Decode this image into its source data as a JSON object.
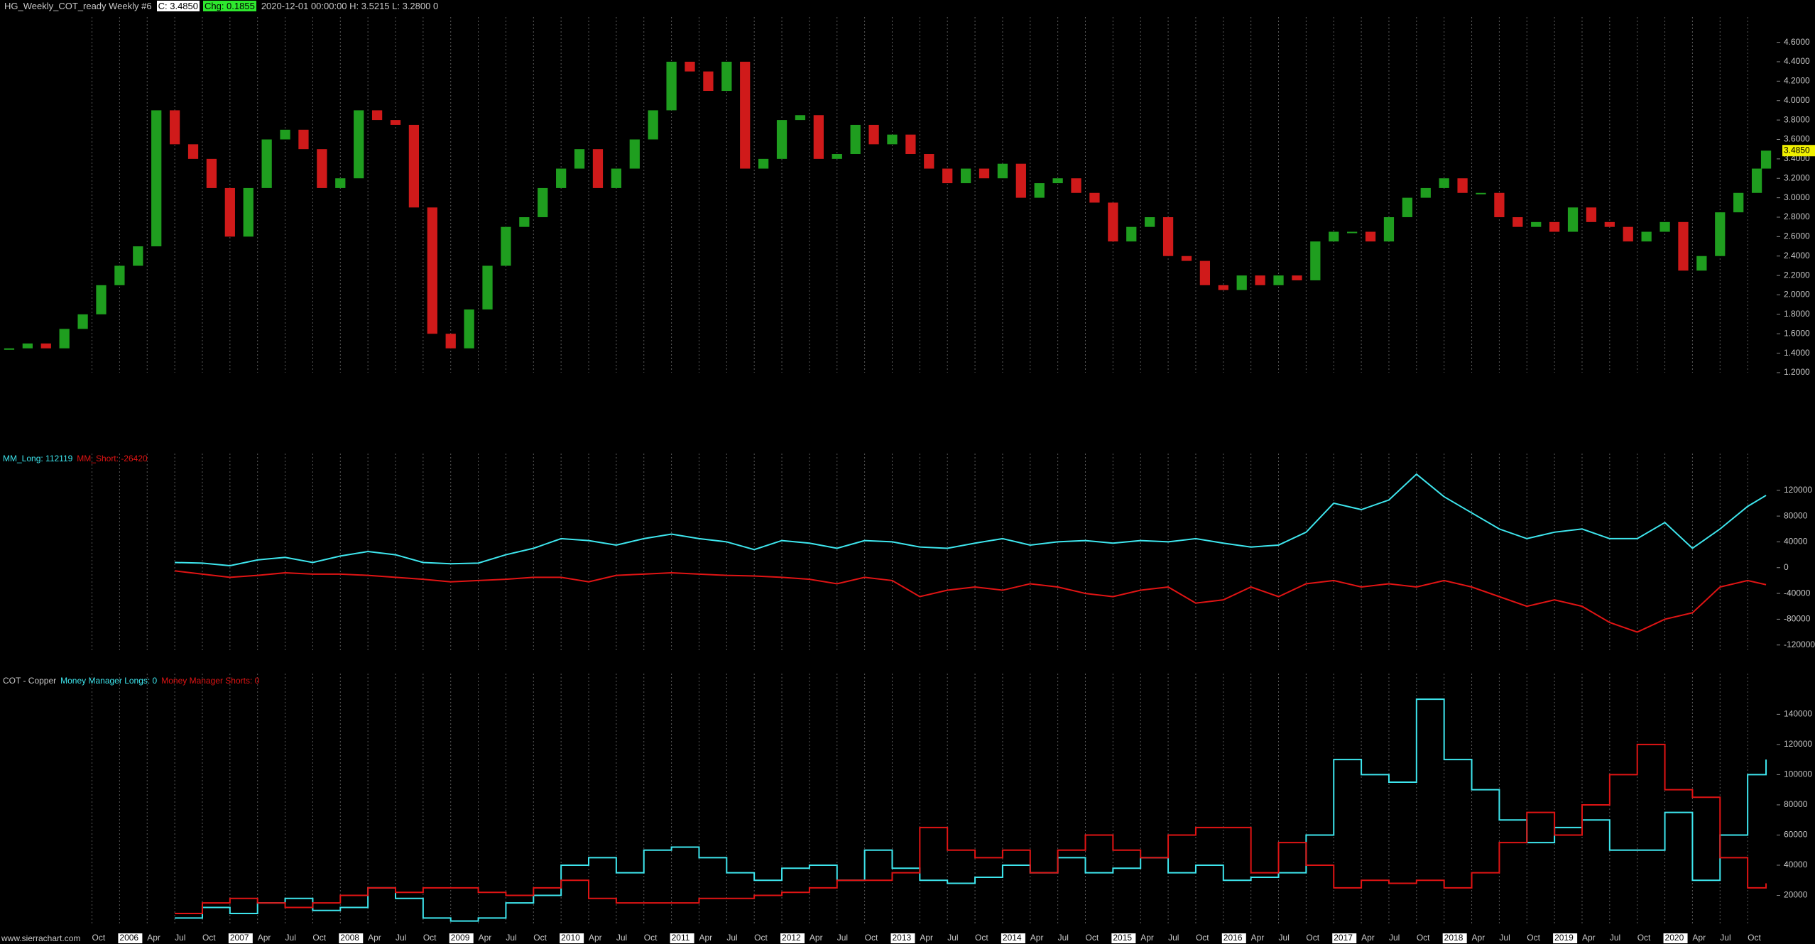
{
  "header": {
    "symbol": "HG_Weekly_COT_ready Weekly #6",
    "close": "C: 3.4850",
    "change": "Chg: 0.1855",
    "info": "2020-12-01 00:00:00 H: 3.5215 L: 3.2800 0",
    "last_label": "3.4850"
  },
  "footer": {
    "watermark": "www.sierrachart.com"
  },
  "chart_data": [
    {
      "type": "candlestick",
      "up_color": "#1f9e1f",
      "down_color": "#d01a1a",
      "last_color": "#f0f000",
      "xlim": [
        "2004-12",
        "2021-01"
      ],
      "x": [
        "2005-01",
        "2005-03",
        "2005-05",
        "2005-07",
        "2005-09",
        "2005-11",
        "2006-01",
        "2006-03",
        "2006-05",
        "2006-07",
        "2006-09",
        "2006-11",
        "2007-01",
        "2007-03",
        "2007-05",
        "2007-07",
        "2007-09",
        "2007-11",
        "2008-01",
        "2008-03",
        "2008-05",
        "2008-07",
        "2008-09",
        "2008-11",
        "2009-01",
        "2009-03",
        "2009-05",
        "2009-07",
        "2009-09",
        "2009-11",
        "2010-01",
        "2010-03",
        "2010-05",
        "2010-07",
        "2010-09",
        "2010-11",
        "2011-01",
        "2011-03",
        "2011-05",
        "2011-07",
        "2011-09",
        "2011-11",
        "2012-01",
        "2012-03",
        "2012-05",
        "2012-07",
        "2012-09",
        "2012-11",
        "2013-01",
        "2013-03",
        "2013-05",
        "2013-07",
        "2013-09",
        "2013-11",
        "2014-01",
        "2014-03",
        "2014-05",
        "2014-07",
        "2014-09",
        "2014-11",
        "2015-01",
        "2015-03",
        "2015-05",
        "2015-07",
        "2015-09",
        "2015-11",
        "2016-01",
        "2016-03",
        "2016-05",
        "2016-07",
        "2016-09",
        "2016-11",
        "2017-01",
        "2017-03",
        "2017-05",
        "2017-07",
        "2017-09",
        "2017-11",
        "2018-01",
        "2018-03",
        "2018-05",
        "2018-07",
        "2018-09",
        "2018-11",
        "2019-01",
        "2019-03",
        "2019-05",
        "2019-07",
        "2019-09",
        "2019-11",
        "2020-01",
        "2020-03",
        "2020-05",
        "2020-07",
        "2020-09",
        "2020-11",
        "2020-12"
      ],
      "values": [
        1.45,
        1.5,
        1.45,
        1.65,
        1.8,
        2.1,
        2.3,
        2.5,
        3.9,
        3.55,
        3.4,
        3.1,
        2.6,
        3.1,
        3.6,
        3.7,
        3.5,
        3.1,
        3.2,
        3.9,
        3.8,
        3.75,
        2.9,
        1.6,
        1.45,
        1.85,
        2.3,
        2.7,
        2.8,
        3.1,
        3.3,
        3.5,
        3.1,
        3.3,
        3.6,
        3.9,
        4.4,
        4.3,
        4.1,
        4.4,
        3.3,
        3.4,
        3.8,
        3.85,
        3.4,
        3.45,
        3.75,
        3.55,
        3.65,
        3.45,
        3.3,
        3.15,
        3.3,
        3.2,
        3.35,
        3.0,
        3.15,
        3.2,
        3.05,
        2.95,
        2.55,
        2.7,
        2.8,
        2.4,
        2.35,
        2.1,
        2.05,
        2.2,
        2.1,
        2.2,
        2.15,
        2.55,
        2.65,
        2.65,
        2.55,
        2.8,
        3.0,
        3.1,
        3.2,
        3.05,
        3.05,
        2.8,
        2.7,
        2.75,
        2.65,
        2.9,
        2.75,
        2.7,
        2.55,
        2.65,
        2.75,
        2.25,
        2.4,
        2.85,
        3.05,
        3.3,
        3.485
      ],
      "ylim": [
        1.2,
        4.86
      ],
      "yticks": [
        {
          "value": 1.2,
          "label": "1.2000"
        },
        {
          "value": 1.4,
          "label": "1.4000"
        },
        {
          "value": 1.6,
          "label": "1.6000"
        },
        {
          "value": 1.8,
          "label": "1.8000"
        },
        {
          "value": 2.0,
          "label": "2.0000"
        },
        {
          "value": 2.2,
          "label": "2.2000"
        },
        {
          "value": 2.4,
          "label": "2.4000"
        },
        {
          "value": 2.6,
          "label": "2.6000"
        },
        {
          "value": 2.8,
          "label": "2.8000"
        },
        {
          "value": 3.0,
          "label": "3.0000"
        },
        {
          "value": 3.2,
          "label": "3.2000"
        },
        {
          "value": 3.4,
          "label": "3.4000"
        },
        {
          "value": 3.6,
          "label": "3.6000"
        },
        {
          "value": 3.8,
          "label": "3.8000"
        },
        {
          "value": 4.0,
          "label": "4.0000"
        },
        {
          "value": 4.2,
          "label": "4.2000"
        },
        {
          "value": 4.4,
          "label": "4.4000"
        },
        {
          "value": 4.6,
          "label": "4.6000"
        }
      ]
    },
    {
      "type": "line",
      "xlim": [
        "2004-12",
        "2021-01"
      ],
      "x": [
        "2006-07",
        "2006-10",
        "2007-01",
        "2007-04",
        "2007-07",
        "2007-10",
        "2008-01",
        "2008-04",
        "2008-07",
        "2008-10",
        "2009-01",
        "2009-04",
        "2009-07",
        "2009-10",
        "2010-01",
        "2010-04",
        "2010-07",
        "2010-10",
        "2011-01",
        "2011-04",
        "2011-07",
        "2011-10",
        "2012-01",
        "2012-04",
        "2012-07",
        "2012-10",
        "2013-01",
        "2013-04",
        "2013-07",
        "2013-10",
        "2014-01",
        "2014-04",
        "2014-07",
        "2014-10",
        "2015-01",
        "2015-04",
        "2015-07",
        "2015-10",
        "2016-01",
        "2016-04",
        "2016-07",
        "2016-10",
        "2017-01",
        "2017-04",
        "2017-07",
        "2017-10",
        "2018-01",
        "2018-04",
        "2018-07",
        "2018-10",
        "2019-01",
        "2019-04",
        "2019-07",
        "2019-10",
        "2020-01",
        "2020-04",
        "2020-07",
        "2020-10",
        "2020-12"
      ],
      "series": [
        {
          "name": "MM_Long: 112119",
          "color": "#3ee6ee",
          "values": [
            8000,
            7000,
            3000,
            12000,
            16000,
            8000,
            18000,
            25000,
            20000,
            8000,
            6000,
            7000,
            20000,
            30000,
            45000,
            42000,
            35000,
            45000,
            52000,
            45000,
            40000,
            28000,
            42000,
            38000,
            30000,
            42000,
            40000,
            32000,
            30000,
            38000,
            45000,
            35000,
            40000,
            42000,
            38000,
            42000,
            40000,
            45000,
            38000,
            32000,
            35000,
            55000,
            100000,
            90000,
            105000,
            145000,
            110000,
            85000,
            60000,
            45000,
            55000,
            60000,
            45000,
            45000,
            70000,
            30000,
            60000,
            95000,
            112119
          ]
        },
        {
          "name": "MM_Short: -26420",
          "color": "#e01414",
          "values": [
            -5000,
            -10000,
            -15000,
            -12000,
            -8000,
            -10000,
            -10000,
            -12000,
            -15000,
            -18000,
            -22000,
            -20000,
            -18000,
            -15000,
            -15000,
            -22000,
            -12000,
            -10000,
            -8000,
            -10000,
            -12000,
            -13000,
            -15000,
            -18000,
            -25000,
            -15000,
            -20000,
            -45000,
            -35000,
            -30000,
            -35000,
            -25000,
            -30000,
            -40000,
            -45000,
            -35000,
            -30000,
            -55000,
            -50000,
            -30000,
            -45000,
            -25000,
            -20000,
            -30000,
            -25000,
            -30000,
            -20000,
            -30000,
            -45000,
            -60000,
            -50000,
            -60000,
            -85000,
            -100000,
            -80000,
            -70000,
            -30000,
            -20000,
            -26420
          ]
        }
      ],
      "ylim": [
        -128000,
        177000
      ],
      "yticks": [
        120000,
        80000,
        40000,
        0,
        -40000,
        -80000,
        -120000
      ]
    },
    {
      "type": "step",
      "title": "COT - Copper",
      "xlim": [
        "2004-12",
        "2021-01"
      ],
      "x": [
        "2006-07",
        "2006-10",
        "2007-01",
        "2007-04",
        "2007-07",
        "2007-10",
        "2008-01",
        "2008-04",
        "2008-07",
        "2008-10",
        "2009-01",
        "2009-04",
        "2009-07",
        "2009-10",
        "2010-01",
        "2010-04",
        "2010-07",
        "2010-10",
        "2011-01",
        "2011-04",
        "2011-07",
        "2011-10",
        "2012-01",
        "2012-04",
        "2012-07",
        "2012-10",
        "2013-01",
        "2013-04",
        "2013-07",
        "2013-10",
        "2014-01",
        "2014-04",
        "2014-07",
        "2014-10",
        "2015-01",
        "2015-04",
        "2015-07",
        "2015-10",
        "2016-01",
        "2016-04",
        "2016-07",
        "2016-10",
        "2017-01",
        "2017-04",
        "2017-07",
        "2017-10",
        "2018-01",
        "2018-04",
        "2018-07",
        "2018-10",
        "2019-01",
        "2019-04",
        "2019-07",
        "2019-10",
        "2020-01",
        "2020-04",
        "2020-07",
        "2020-10",
        "2020-12"
      ],
      "series": [
        {
          "name": "Money Manager Longs: 0",
          "color": "#3ee6ee",
          "values": [
            5000,
            12000,
            8000,
            15000,
            18000,
            10000,
            12000,
            25000,
            18000,
            5000,
            3000,
            5000,
            15000,
            20000,
            40000,
            45000,
            35000,
            50000,
            52000,
            45000,
            35000,
            30000,
            38000,
            40000,
            30000,
            50000,
            38000,
            30000,
            28000,
            32000,
            40000,
            35000,
            45000,
            35000,
            38000,
            45000,
            35000,
            40000,
            30000,
            32000,
            35000,
            60000,
            110000,
            100000,
            95000,
            150000,
            110000,
            90000,
            70000,
            55000,
            65000,
            70000,
            50000,
            50000,
            75000,
            30000,
            60000,
            100000,
            110000
          ]
        },
        {
          "name": "Money Manager Shorts: 0",
          "color": "#e01414",
          "values": [
            8000,
            15000,
            18000,
            15000,
            12000,
            15000,
            20000,
            25000,
            22000,
            25000,
            25000,
            22000,
            20000,
            25000,
            30000,
            18000,
            15000,
            15000,
            15000,
            18000,
            18000,
            20000,
            22000,
            25000,
            30000,
            30000,
            35000,
            65000,
            50000,
            45000,
            50000,
            35000,
            50000,
            60000,
            50000,
            45000,
            60000,
            65000,
            65000,
            35000,
            55000,
            40000,
            25000,
            30000,
            28000,
            30000,
            25000,
            35000,
            55000,
            75000,
            60000,
            80000,
            100000,
            120000,
            90000,
            85000,
            45000,
            25000,
            28000
          ]
        }
      ],
      "ylim": [
        0,
        167000
      ],
      "yticks": [
        140000,
        120000,
        100000,
        80000,
        60000,
        40000,
        20000
      ],
      "xticks": [
        {
          "value": "2005-10",
          "label": "Oct"
        },
        {
          "value": "2006-01",
          "label": "2006"
        },
        {
          "value": "2006-04",
          "label": "Apr"
        },
        {
          "value": "2006-07",
          "label": "Jul"
        },
        {
          "value": "2006-10",
          "label": "Oct"
        },
        {
          "value": "2007-01",
          "label": "2007"
        },
        {
          "value": "2007-04",
          "label": "Apr"
        },
        {
          "value": "2007-07",
          "label": "Jul"
        },
        {
          "value": "2007-10",
          "label": "Oct"
        },
        {
          "value": "2008-01",
          "label": "2008"
        },
        {
          "value": "2008-04",
          "label": "Apr"
        },
        {
          "value": "2008-07",
          "label": "Jul"
        },
        {
          "value": "2008-10",
          "label": "Oct"
        },
        {
          "value": "2009-01",
          "label": "2009"
        },
        {
          "value": "2009-04",
          "label": "Apr"
        },
        {
          "value": "2009-07",
          "label": "Jul"
        },
        {
          "value": "2009-10",
          "label": "Oct"
        },
        {
          "value": "2010-01",
          "label": "2010"
        },
        {
          "value": "2010-04",
          "label": "Apr"
        },
        {
          "value": "2010-07",
          "label": "Jul"
        },
        {
          "value": "2010-10",
          "label": "Oct"
        },
        {
          "value": "2011-01",
          "label": "2011"
        },
        {
          "value": "2011-04",
          "label": "Apr"
        },
        {
          "value": "2011-07",
          "label": "Jul"
        },
        {
          "value": "2011-10",
          "label": "Oct"
        },
        {
          "value": "2012-01",
          "label": "2012"
        },
        {
          "value": "2012-04",
          "label": "Apr"
        },
        {
          "value": "2012-07",
          "label": "Jul"
        },
        {
          "value": "2012-10",
          "label": "Oct"
        },
        {
          "value": "2013-01",
          "label": "2013"
        },
        {
          "value": "2013-04",
          "label": "Apr"
        },
        {
          "value": "2013-07",
          "label": "Jul"
        },
        {
          "value": "2013-10",
          "label": "Oct"
        },
        {
          "value": "2014-01",
          "label": "2014"
        },
        {
          "value": "2014-04",
          "label": "Apr"
        },
        {
          "value": "2014-07",
          "label": "Jul"
        },
        {
          "value": "2014-10",
          "label": "Oct"
        },
        {
          "value": "2015-01",
          "label": "2015"
        },
        {
          "value": "2015-04",
          "label": "Apr"
        },
        {
          "value": "2015-07",
          "label": "Jul"
        },
        {
          "value": "2015-10",
          "label": "Oct"
        },
        {
          "value": "2016-01",
          "label": "2016"
        },
        {
          "value": "2016-04",
          "label": "Apr"
        },
        {
          "value": "2016-07",
          "label": "Jul"
        },
        {
          "value": "2016-10",
          "label": "Oct"
        },
        {
          "value": "2017-01",
          "label": "2017"
        },
        {
          "value": "2017-04",
          "label": "Apr"
        },
        {
          "value": "2017-07",
          "label": "Jul"
        },
        {
          "value": "2017-10",
          "label": "Oct"
        },
        {
          "value": "2018-01",
          "label": "2018"
        },
        {
          "value": "2018-04",
          "label": "Apr"
        },
        {
          "value": "2018-07",
          "label": "Jul"
        },
        {
          "value": "2018-10",
          "label": "Oct"
        },
        {
          "value": "2019-01",
          "label": "2019"
        },
        {
          "value": "2019-04",
          "label": "Apr"
        },
        {
          "value": "2019-07",
          "label": "Jul"
        },
        {
          "value": "2019-10",
          "label": "Oct"
        },
        {
          "value": "2020-01",
          "label": "2020"
        },
        {
          "value": "2020-04",
          "label": "Apr"
        },
        {
          "value": "2020-07",
          "label": "Jul"
        },
        {
          "value": "2020-10",
          "label": "Oct"
        }
      ]
    }
  ]
}
